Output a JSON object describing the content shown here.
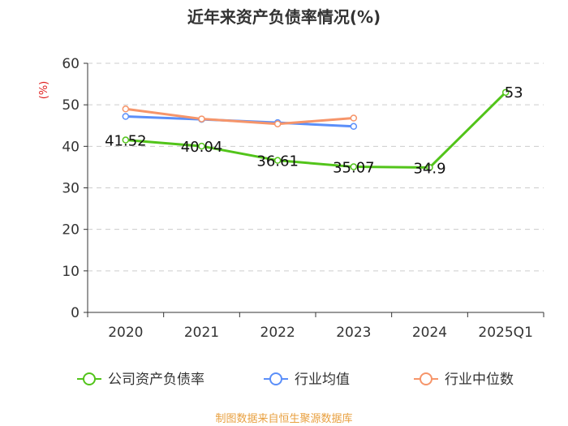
{
  "chart_data": {
    "type": "line",
    "title": "近年来资产负债率情况(%)",
    "ylabel": "(%)",
    "xlabel": "",
    "ylim": [
      0,
      60
    ],
    "yticks": [
      0,
      10,
      20,
      30,
      40,
      50,
      60
    ],
    "categories": [
      "2020",
      "2021",
      "2022",
      "2023",
      "2024",
      "2025Q1"
    ],
    "series": [
      {
        "name": "公司资产负债率",
        "color": "#52c41a",
        "values": [
          41.52,
          40.04,
          36.61,
          35.07,
          34.9,
          53
        ],
        "labels": [
          "41.52",
          "40.04",
          "36.61",
          "35.07",
          "34.9",
          "53"
        ]
      },
      {
        "name": "行业均值",
        "color": "#5b8ff9",
        "values": [
          47.2,
          46.5,
          45.7,
          44.8,
          null,
          null
        ]
      },
      {
        "name": "行业中位数",
        "color": "#f6956a",
        "values": [
          49.0,
          46.6,
          45.4,
          46.8,
          null,
          null
        ]
      }
    ],
    "legend_position": "bottom",
    "grid": true,
    "source": "制图数据来自恒生聚源数据库"
  }
}
